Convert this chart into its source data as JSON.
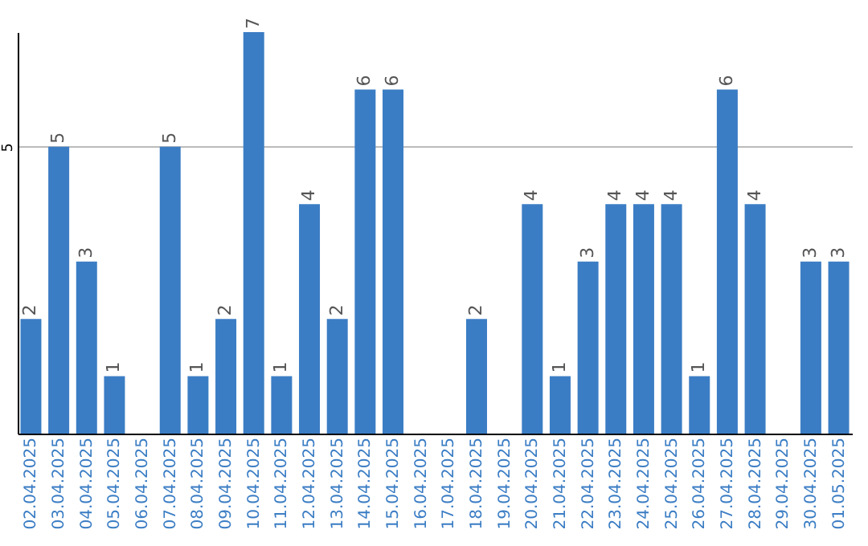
{
  "chart_data": {
    "type": "bar",
    "categories": [
      "02.04.2025",
      "03.04.2025",
      "04.04.2025",
      "05.04.2025",
      "06.04.2025",
      "07.04.2025",
      "08.04.2025",
      "09.04.2025",
      "10.04.2025",
      "11.04.2025",
      "12.04.2025",
      "13.04.2025",
      "14.04.2025",
      "15.04.2025",
      "16.04.2025",
      "17.04.2025",
      "18.04.2025",
      "19.04.2025",
      "20.04.2025",
      "21.04.2025",
      "22.04.2025",
      "23.04.2025",
      "24.04.2025",
      "25.04.2025",
      "26.04.2025",
      "27.04.2025",
      "28.04.2025",
      "29.04.2025",
      "30.04.2025",
      "01.05.2025"
    ],
    "values": [
      2,
      5,
      3,
      1,
      null,
      5,
      1,
      2,
      7,
      1,
      4,
      2,
      6,
      6,
      null,
      null,
      2,
      null,
      4,
      1,
      3,
      4,
      4,
      4,
      1,
      6,
      4,
      null,
      3,
      3
    ],
    "color": "#3b7dc4",
    "ylim": [
      0,
      7
    ],
    "yticks": [
      5
    ],
    "grid": "y",
    "data_labels": true
  }
}
